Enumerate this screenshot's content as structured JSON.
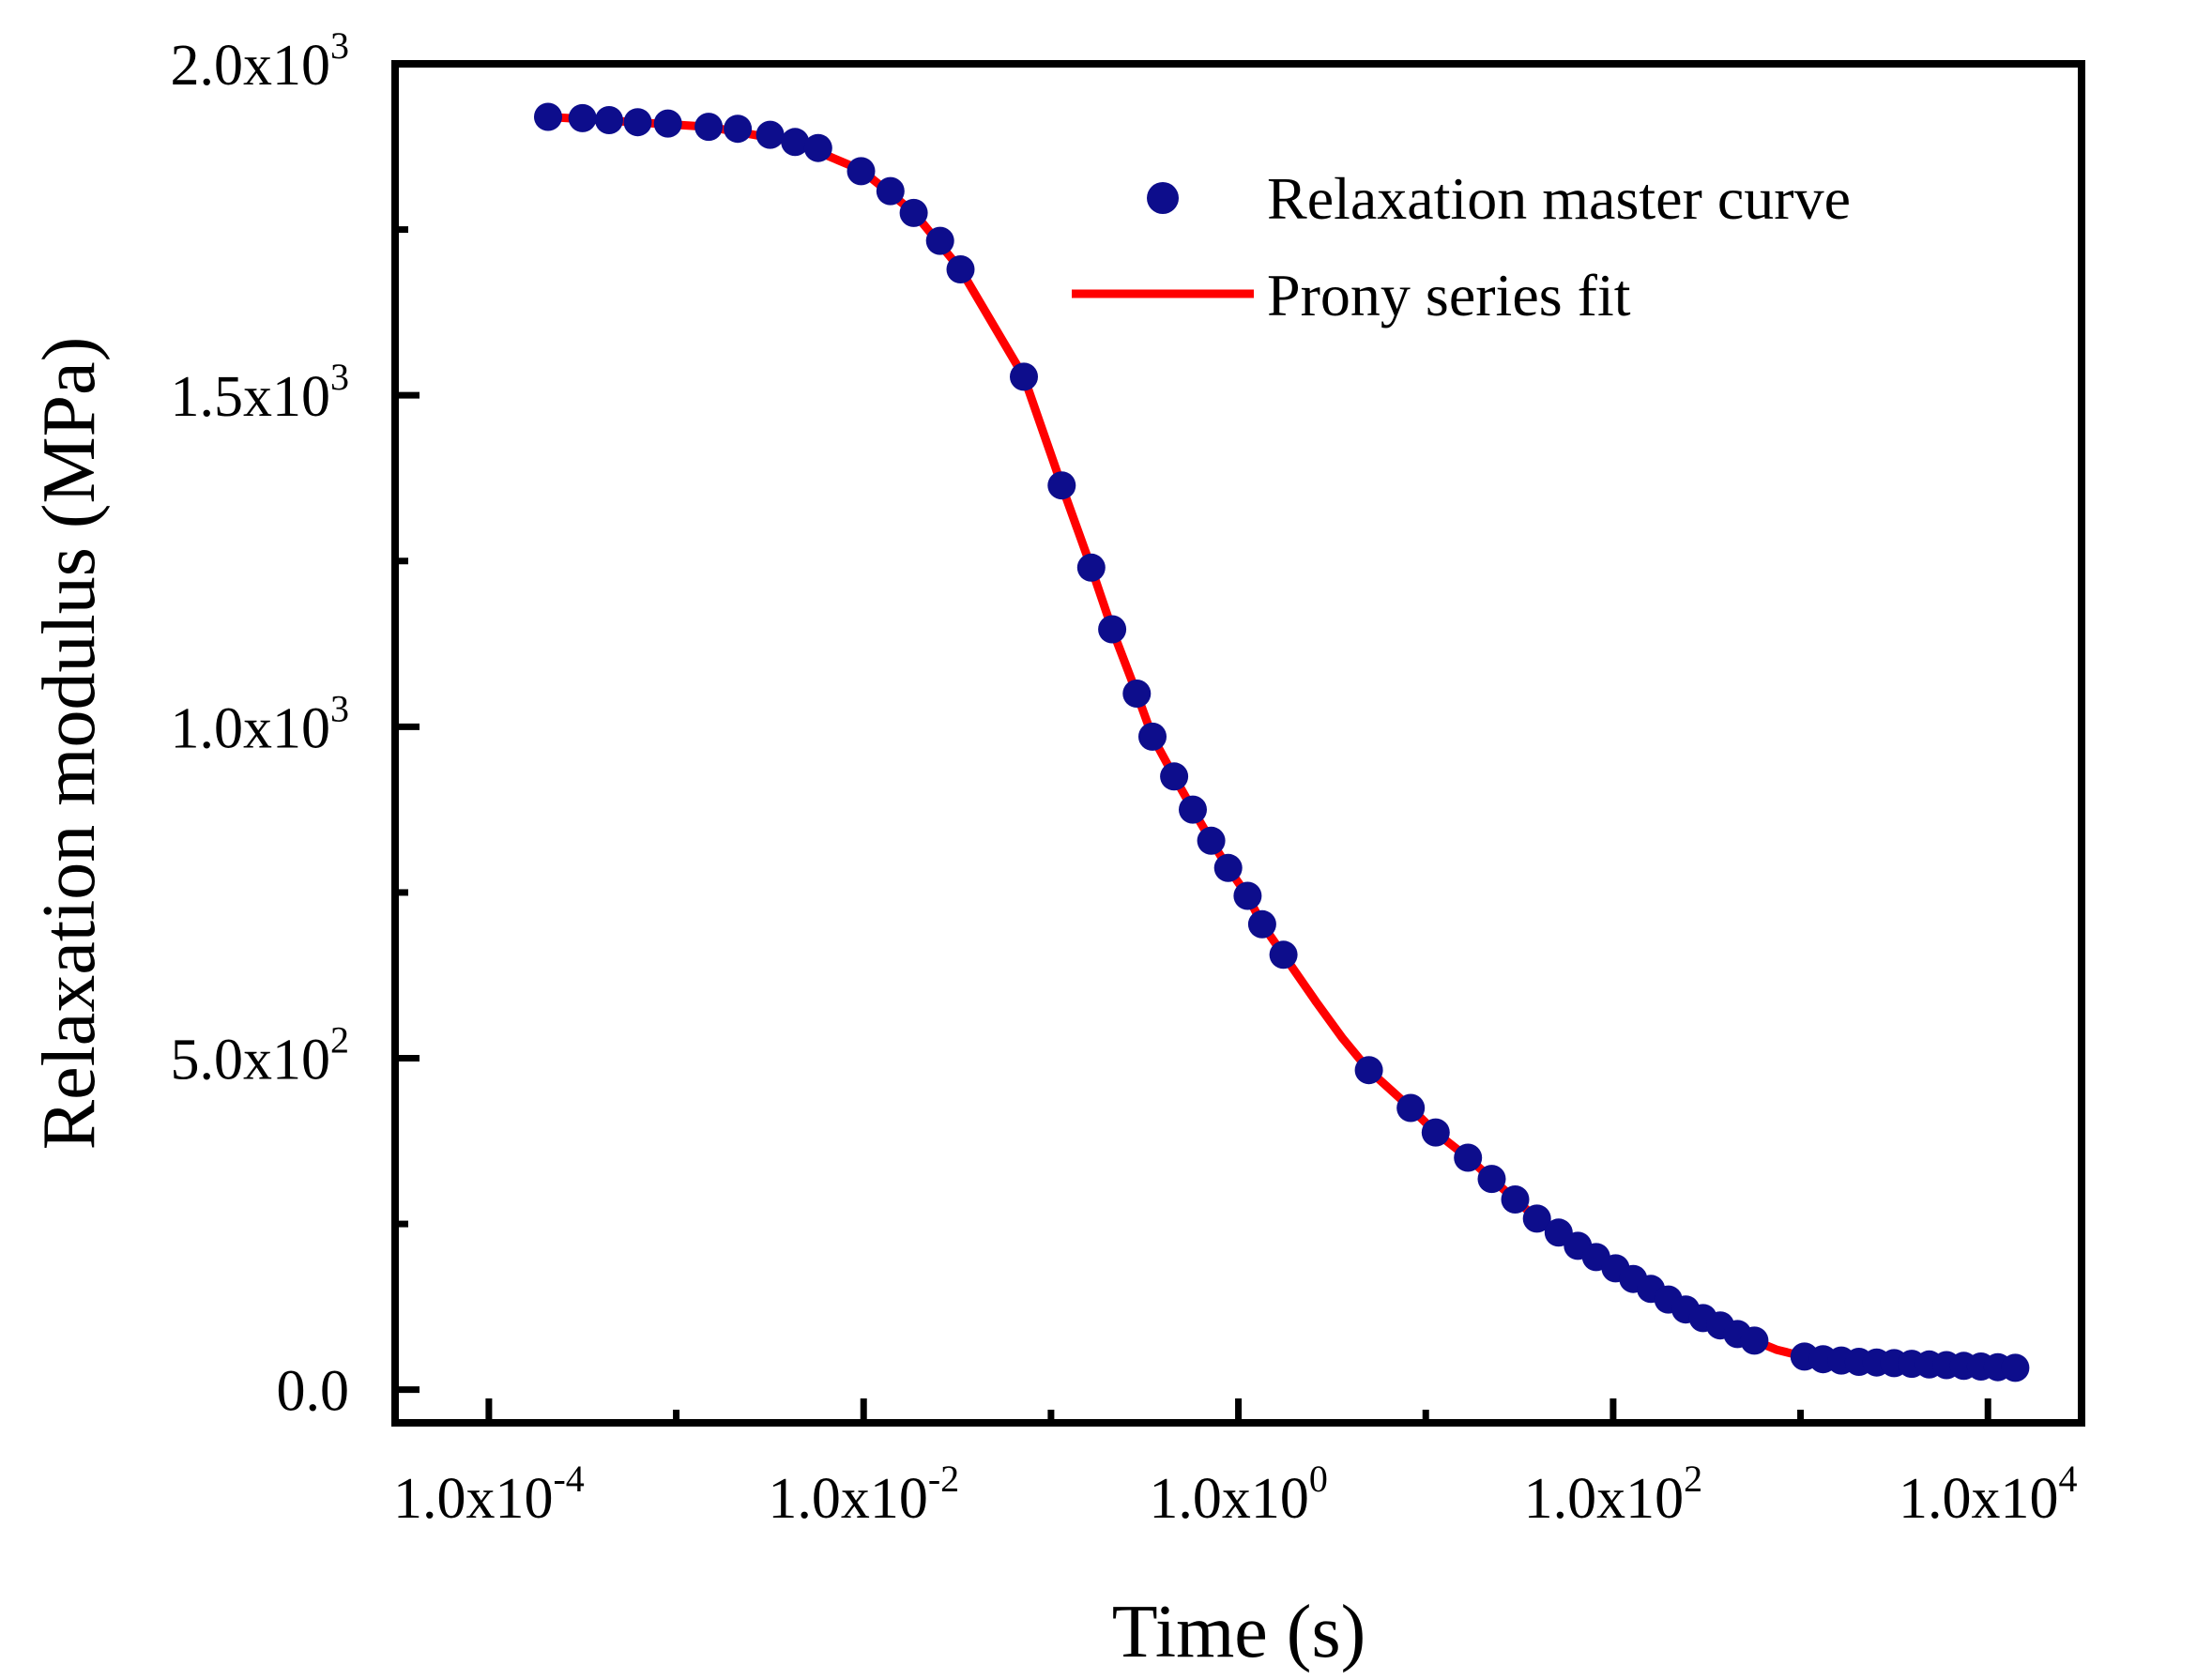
{
  "chart_data": {
    "type": "scatter",
    "title": "",
    "xlabel": "Time (s)",
    "ylabel": "Relaxation modulus (MPa)",
    "xscale": "log",
    "xlim": [
      3.16e-05,
      31600
    ],
    "ylim": [
      -50,
      2000
    ],
    "x_ticks": [
      {
        "value": 0.0001,
        "mantissa": "1.0x10",
        "exp": "-4"
      },
      {
        "value": 0.01,
        "mantissa": "1.0x10",
        "exp": "-2"
      },
      {
        "value": 1,
        "mantissa": "1.0x10",
        "exp": "0"
      },
      {
        "value": 100,
        "mantissa": "1.0x10",
        "exp": "2"
      },
      {
        "value": 10000,
        "mantissa": "1.0x10",
        "exp": "4"
      }
    ],
    "y_ticks": [
      {
        "value": 0,
        "mantissa": "0.0",
        "exp": ""
      },
      {
        "value": 500,
        "mantissa": "5.0x10",
        "exp": "2"
      },
      {
        "value": 1000,
        "mantissa": "1.0x10",
        "exp": "3"
      },
      {
        "value": 1500,
        "mantissa": "1.5x10",
        "exp": "3"
      },
      {
        "value": 2000,
        "mantissa": "2.0x10",
        "exp": "3"
      }
    ],
    "legend_position": "top-right",
    "series": [
      {
        "name": "Relaxation master curve",
        "kind": "scatter",
        "color": "#0d0d8c",
        "points": [
          [
            0.000207,
            1920
          ],
          [
            0.000316,
            1918
          ],
          [
            0.000438,
            1915
          ],
          [
            0.000623,
            1912
          ],
          [
            0.000903,
            1910
          ],
          [
            0.00149,
            1905
          ],
          [
            0.00213,
            1902
          ],
          [
            0.00317,
            1893
          ],
          [
            0.00431,
            1882
          ],
          [
            0.00572,
            1873
          ],
          [
            0.00969,
            1838
          ],
          [
            0.0139,
            1808
          ],
          [
            0.0185,
            1775
          ],
          [
            0.0256,
            1733
          ],
          [
            0.0329,
            1690
          ],
          [
            0.0717,
            1528
          ],
          [
            0.114,
            1364
          ],
          [
            0.164,
            1240
          ],
          [
            0.212,
            1147
          ],
          [
            0.287,
            1050
          ],
          [
            0.348,
            985
          ],
          [
            0.454,
            925
          ],
          [
            0.571,
            875
          ],
          [
            0.716,
            828
          ],
          [
            0.882,
            787
          ],
          [
            1.12,
            745
          ],
          [
            1.34,
            702
          ],
          [
            1.74,
            656
          ],
          [
            4.97,
            482
          ],
          [
            8.31,
            425
          ],
          [
            11.3,
            388
          ],
          [
            16.8,
            350
          ],
          [
            22.5,
            318
          ],
          [
            30.0,
            287
          ],
          [
            39.2,
            258
          ],
          [
            51.2,
            237
          ],
          [
            64.8,
            217
          ],
          [
            81.2,
            200
          ],
          [
            103.0,
            183
          ],
          [
            128.0,
            167
          ],
          [
            159.0,
            152
          ],
          [
            197.0,
            136
          ],
          [
            244.0,
            121
          ],
          [
            302.0,
            108
          ],
          [
            373.0,
            97
          ],
          [
            461.0,
            84
          ],
          [
            567.0,
            74
          ],
          [
            1050.0,
            50
          ],
          [
            1320.0,
            46
          ],
          [
            1650.0,
            44
          ],
          [
            2050.0,
            42
          ],
          [
            2550.0,
            41
          ],
          [
            3160.0,
            40
          ],
          [
            3920.0,
            39
          ],
          [
            4860.0,
            38
          ],
          [
            6010.0,
            37
          ],
          [
            7430.0,
            36
          ],
          [
            9180.0,
            35
          ],
          [
            11300.0,
            34
          ],
          [
            14000.0,
            33
          ]
        ]
      },
      {
        "name": "Prony series fit",
        "kind": "line",
        "color": "#ff0000",
        "points": [
          [
            0.000207,
            1920
          ],
          [
            0.00149,
            1905
          ],
          [
            0.00431,
            1882
          ],
          [
            0.00969,
            1840
          ],
          [
            0.0185,
            1776
          ],
          [
            0.0329,
            1690
          ],
          [
            0.0717,
            1528
          ],
          [
            0.114,
            1364
          ],
          [
            0.164,
            1240
          ],
          [
            0.212,
            1147
          ],
          [
            0.287,
            1050
          ],
          [
            0.348,
            985
          ],
          [
            0.454,
            925
          ],
          [
            0.571,
            875
          ],
          [
            0.716,
            828
          ],
          [
            0.882,
            787
          ],
          [
            1.12,
            745
          ],
          [
            1.34,
            702
          ],
          [
            1.74,
            656
          ],
          [
            2.6,
            585
          ],
          [
            3.6,
            530
          ],
          [
            4.97,
            482
          ],
          [
            8.31,
            425
          ],
          [
            11.3,
            388
          ],
          [
            16.8,
            350
          ],
          [
            22.5,
            318
          ],
          [
            30.0,
            287
          ],
          [
            39.2,
            258
          ],
          [
            51.2,
            237
          ],
          [
            64.8,
            217
          ],
          [
            81.2,
            200
          ],
          [
            103.0,
            183
          ],
          [
            128.0,
            167
          ],
          [
            159.0,
            152
          ],
          [
            197.0,
            136
          ],
          [
            244.0,
            121
          ],
          [
            302.0,
            108
          ],
          [
            373.0,
            97
          ],
          [
            461.0,
            84
          ],
          [
            567.0,
            74
          ],
          [
            750.0,
            60
          ],
          [
            1050.0,
            50
          ],
          [
            1650.0,
            44
          ],
          [
            3160.0,
            40
          ],
          [
            6010.0,
            37
          ],
          [
            14000.0,
            33
          ]
        ]
      }
    ]
  }
}
